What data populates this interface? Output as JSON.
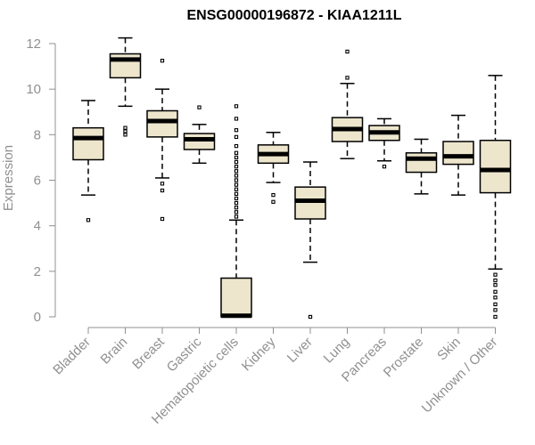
{
  "chart_data": {
    "type": "boxplot",
    "title": "ENSG00000196872 - KIAA1211L",
    "xlabel": "",
    "ylabel": "Expression",
    "ylim": [
      0,
      12
    ],
    "yticks": [
      0,
      2,
      4,
      6,
      8,
      10,
      12
    ],
    "ytick_labels": [
      "0",
      "2",
      "4",
      "6",
      "8",
      "10",
      "12"
    ],
    "box_color": "#ede6cd",
    "categories": [
      "Bladder",
      "Brain",
      "Breast",
      "Gastric",
      "Hematopoietic cells",
      "Kidney",
      "Liver",
      "Lung",
      "Pancreas",
      "Prostate",
      "Skin",
      "Unknown / Other"
    ],
    "series": [
      {
        "name": "Bladder",
        "whisker_low": 5.35,
        "q1": 6.9,
        "median": 7.85,
        "q3": 8.3,
        "whisker_high": 9.5,
        "outliers": [
          4.25
        ]
      },
      {
        "name": "Brain",
        "whisker_low": 9.25,
        "q1": 10.5,
        "median": 11.3,
        "q3": 11.55,
        "whisker_high": 12.25,
        "outliers": [
          8.0,
          8.15,
          8.3
        ]
      },
      {
        "name": "Breast",
        "whisker_low": 6.1,
        "q1": 7.9,
        "median": 8.6,
        "q3": 9.05,
        "whisker_high": 10.0,
        "outliers": [
          11.25,
          5.85,
          5.55,
          4.3
        ]
      },
      {
        "name": "Gastric",
        "whisker_low": 6.75,
        "q1": 7.35,
        "median": 7.8,
        "q3": 8.05,
        "whisker_high": 8.45,
        "outliers": [
          9.2
        ]
      },
      {
        "name": "Hematopoietic cells",
        "whisker_low": 0.0,
        "q1": 0.0,
        "median": 0.05,
        "q3": 1.7,
        "whisker_high": 4.25,
        "outliers": [
          4.4,
          4.6,
          4.8,
          5.0,
          5.2,
          5.4,
          5.6,
          5.8,
          6.0,
          6.2,
          6.4,
          6.6,
          6.8,
          7.0,
          7.2,
          7.5,
          7.9,
          8.2,
          8.7,
          9.25
        ]
      },
      {
        "name": "Kidney",
        "whisker_low": 5.9,
        "q1": 6.75,
        "median": 7.15,
        "q3": 7.55,
        "whisker_high": 8.1,
        "outliers": [
          5.35,
          5.05
        ]
      },
      {
        "name": "Liver",
        "whisker_low": 2.4,
        "q1": 4.3,
        "median": 5.1,
        "q3": 5.7,
        "whisker_high": 6.8,
        "outliers": [
          0.0
        ]
      },
      {
        "name": "Lung",
        "whisker_low": 6.95,
        "q1": 7.7,
        "median": 8.25,
        "q3": 8.75,
        "whisker_high": 10.25,
        "outliers": [
          10.5,
          11.65
        ]
      },
      {
        "name": "Pancreas",
        "whisker_low": 6.85,
        "q1": 7.75,
        "median": 8.1,
        "q3": 8.4,
        "whisker_high": 8.7,
        "outliers": [
          6.6
        ]
      },
      {
        "name": "Prostate",
        "whisker_low": 5.4,
        "q1": 6.35,
        "median": 6.95,
        "q3": 7.2,
        "whisker_high": 7.8,
        "outliers": []
      },
      {
        "name": "Skin",
        "whisker_low": 5.35,
        "q1": 6.7,
        "median": 7.05,
        "q3": 7.7,
        "whisker_high": 8.85,
        "outliers": []
      },
      {
        "name": "Unknown / Other",
        "whisker_low": 2.1,
        "q1": 5.45,
        "median": 6.45,
        "q3": 7.75,
        "whisker_high": 10.6,
        "outliers": [
          1.85,
          1.6,
          1.4,
          1.1,
          0.85,
          0.55,
          0.3,
          0.0
        ]
      }
    ]
  }
}
